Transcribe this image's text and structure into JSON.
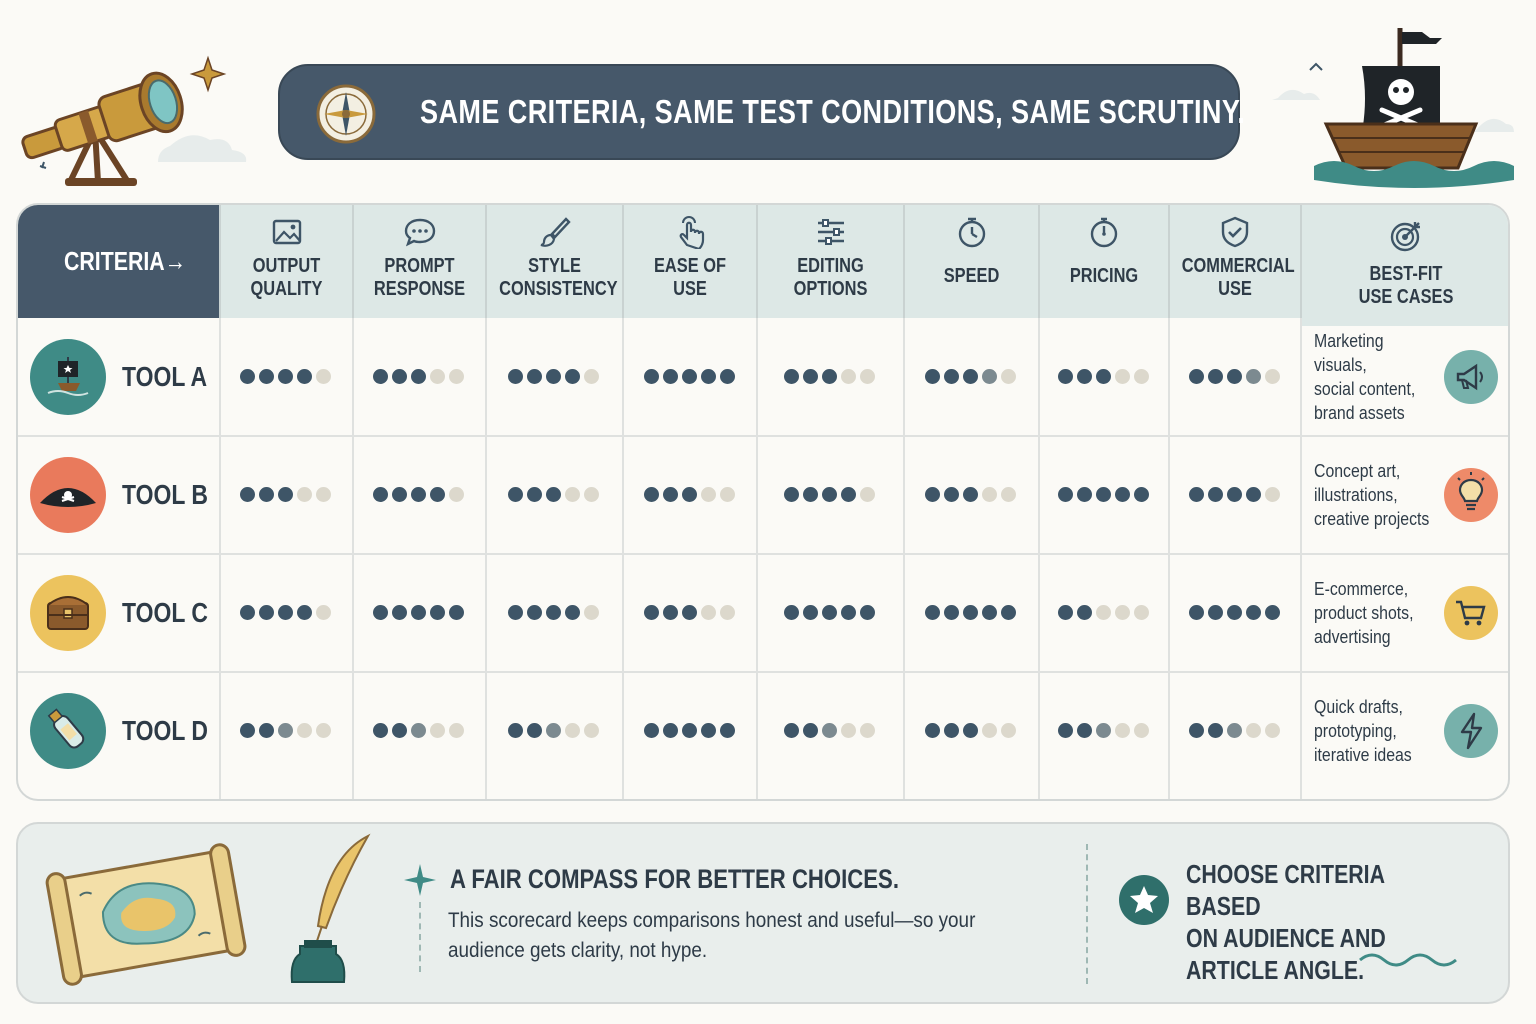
{
  "banner": {
    "title": "SAME CRITERIA, SAME TEST CONDITIONS, SAME SCRUTINY.",
    "icon": "compass-icon"
  },
  "table": {
    "corner_label": "CRITERIA→",
    "columns": [
      {
        "label": "OUTPUT\nQUALITY",
        "icon": "image-icon"
      },
      {
        "label": "PROMPT\nRESPONSE",
        "icon": "chat-bubble-icon"
      },
      {
        "label": "STYLE\nCONSISTENCY",
        "icon": "brush-icon"
      },
      {
        "label": "EASE OF\nUSE",
        "icon": "hand-tap-icon"
      },
      {
        "label": "EDITING\nOPTIONS",
        "icon": "sliders-icon"
      },
      {
        "label": "SPEED",
        "icon": "stopwatch-icon"
      },
      {
        "label": "PRICING",
        "icon": "clock-dial-icon"
      },
      {
        "label": "COMMERCIAL\nUSE",
        "icon": "shield-check-icon"
      },
      {
        "label": "BEST-FIT\nUSE CASES",
        "icon": "target-icon"
      }
    ],
    "rows": [
      {
        "name": "TOOL A",
        "badge_icon": "pirate-ship-icon",
        "badge_color": "#3f8b86",
        "ratings": [
          4,
          3,
          4,
          5,
          3,
          3.5,
          3,
          3.5
        ],
        "best_fit": "Marketing visuals,\nsocial content,\nbrand assets",
        "best_icon": "megaphone-icon",
        "best_color": "#77b1ab"
      },
      {
        "name": "TOOL B",
        "badge_icon": "pirate-hat-icon",
        "badge_color": "#e97a5c",
        "ratings": [
          3,
          4,
          3,
          3,
          4,
          3,
          5,
          4
        ],
        "best_fit": "Concept art,\nillustrations,\ncreative projects",
        "best_icon": "lightbulb-icon",
        "best_color": "#ee8a69"
      },
      {
        "name": "TOOL C",
        "badge_icon": "treasure-chest-icon",
        "badge_color": "#ecc35e",
        "ratings": [
          4,
          5,
          4,
          3,
          5,
          5,
          2,
          5
        ],
        "best_fit": "E-commerce,\nproduct shots,\nadvertising",
        "best_icon": "cart-icon",
        "best_color": "#ecc35e"
      },
      {
        "name": "TOOL D",
        "badge_icon": "message-bottle-icon",
        "badge_color": "#3f8b86",
        "ratings": [
          2.5,
          2.5,
          2.5,
          5,
          2.5,
          3,
          2.5,
          2.5
        ],
        "best_fit": "Quick drafts,\nprototyping,\niterative ideas",
        "best_icon": "lightning-icon",
        "best_color": "#77b1ab"
      }
    ],
    "colors": {
      "filled": "#3e5567",
      "half": "#7c8a90",
      "empty": "#dcd8cc"
    }
  },
  "footer": {
    "headline": "A FAIR COMPASS FOR BETTER CHOICES.",
    "body": "This scorecard keeps comparisons honest and useful—so your audience gets clarity, not hype.",
    "tip": "CHOOSE CRITERIA BASED\nON AUDIENCE AND\nARTICLE ANGLE."
  }
}
